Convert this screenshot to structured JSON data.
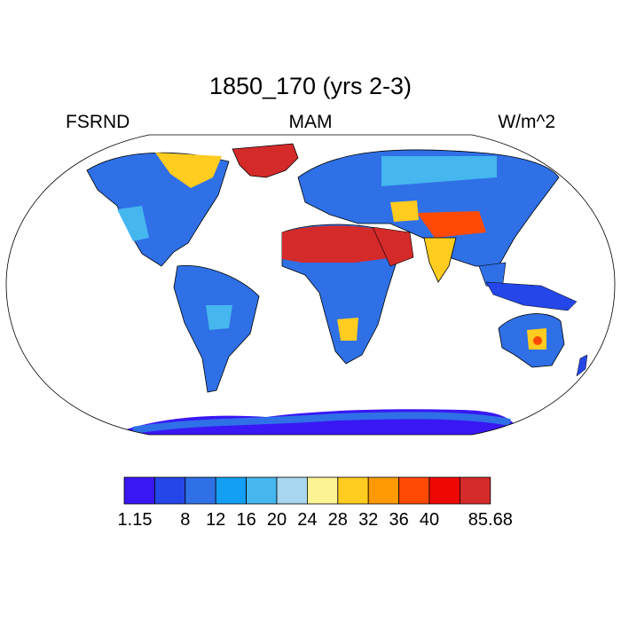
{
  "title": "1850_170 (yrs 2-3)",
  "left_label": "FSRND",
  "center_label": "MAM",
  "right_label": "W/m^2",
  "colorbar": {
    "colors": [
      "#3a17f5",
      "#2546e8",
      "#2f70e6",
      "#139ff4",
      "#45b6ee",
      "#a8d6ef",
      "#fff495",
      "#ffcc1f",
      "#ff9a04",
      "#ff4a05",
      "#ee0804",
      "#d42a2a"
    ],
    "labels": [
      "1.15",
      "8",
      "12",
      "16",
      "20",
      "24",
      "28",
      "32",
      "36",
      "40",
      "85.68"
    ]
  },
  "map_colors": {
    "ocean": "#ffffff",
    "coastline": "#000000",
    "antarctica": "#3a17f5",
    "greenland": "#d42a2a"
  }
}
